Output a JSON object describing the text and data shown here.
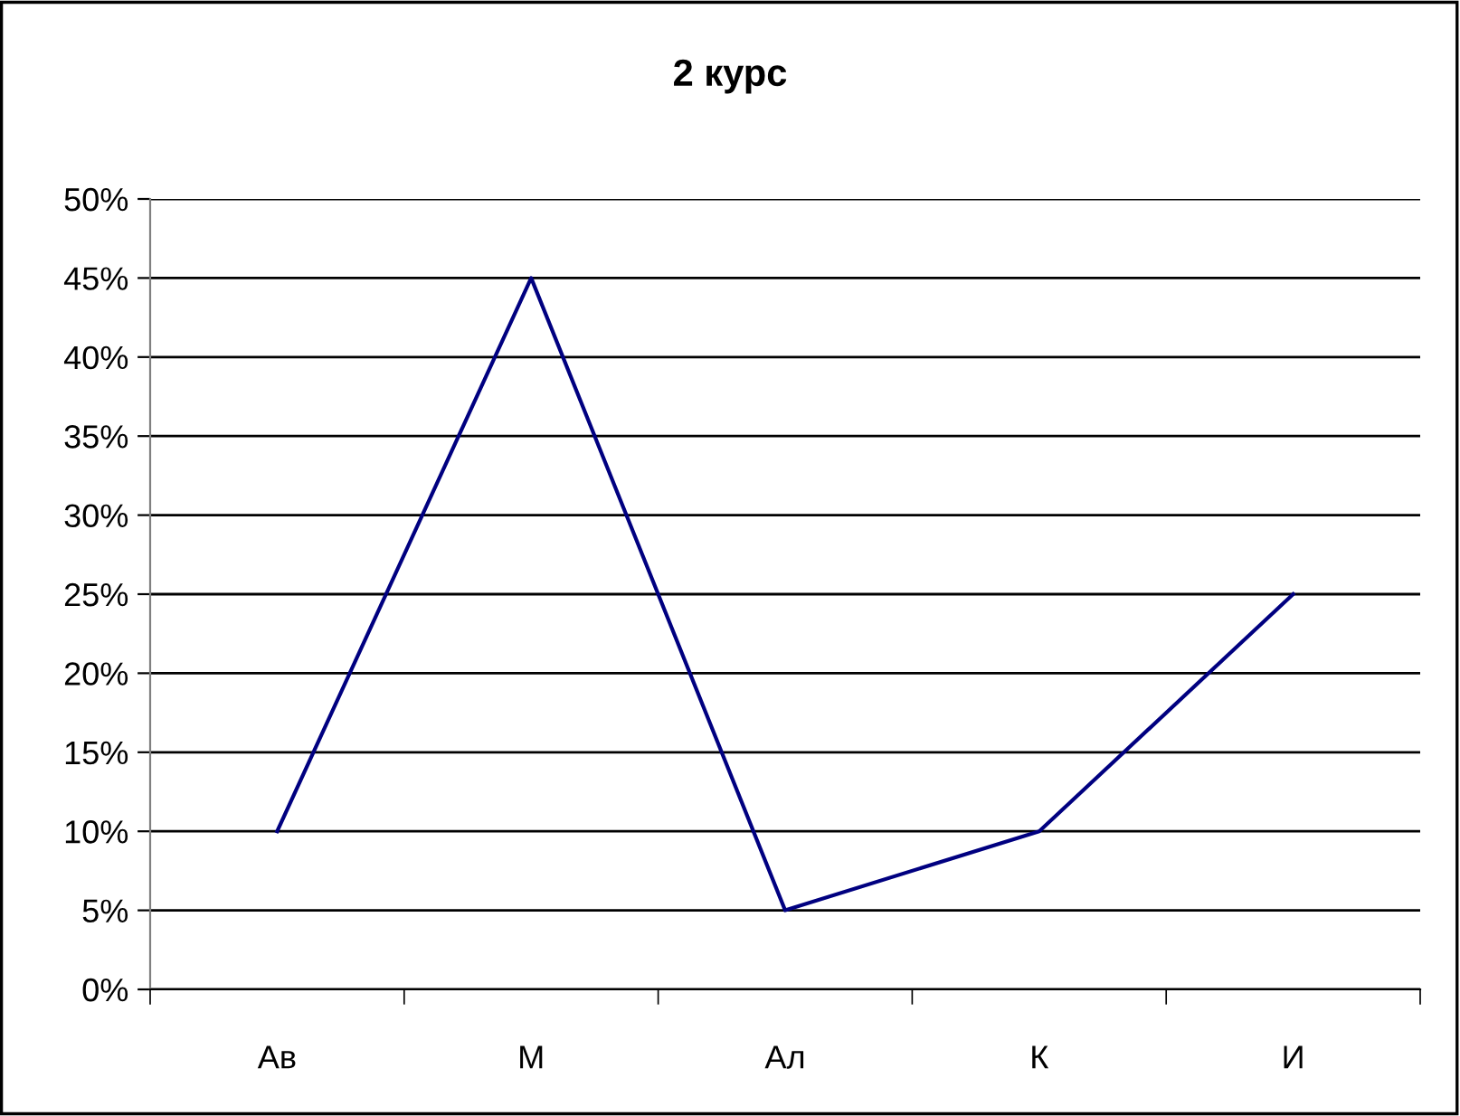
{
  "chart_data": {
    "type": "line",
    "title": "2 курс",
    "categories": [
      "Ав",
      "М",
      "Ал",
      "К",
      "И"
    ],
    "series": [
      {
        "color": "#000080",
        "values": [
          10,
          45,
          5,
          10,
          25
        ]
      }
    ],
    "ylim": [
      0,
      50
    ],
    "yticks": [
      {
        "value": 0,
        "label": "0%"
      },
      {
        "value": 5,
        "label": "5%"
      },
      {
        "value": 10,
        "label": "10%"
      },
      {
        "value": 15,
        "label": "15%"
      },
      {
        "value": 20,
        "label": "20%"
      },
      {
        "value": 25,
        "label": "25%"
      },
      {
        "value": 30,
        "label": "30%"
      },
      {
        "value": 35,
        "label": "35%"
      },
      {
        "value": 40,
        "label": "40%"
      },
      {
        "value": 45,
        "label": "45%"
      },
      {
        "value": 50,
        "label": "50%"
      }
    ],
    "grid": "y",
    "marker": "none",
    "line_style": "solid"
  }
}
